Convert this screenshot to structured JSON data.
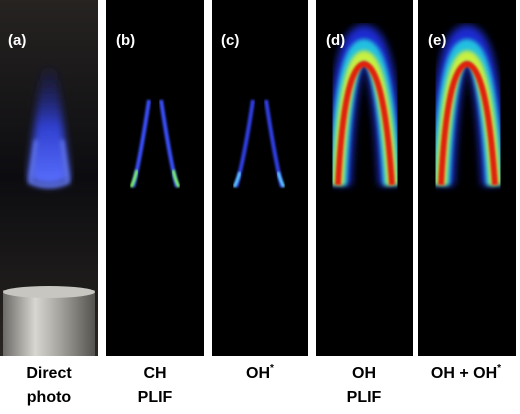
{
  "panels": [
    {
      "label": "(a)",
      "caption": [
        "Direct",
        "photo"
      ]
    },
    {
      "label": "(b)",
      "caption": [
        "CH",
        "PLIF"
      ]
    },
    {
      "label": "(c)",
      "caption": [
        "OH"
      ],
      "caption_sup": "*"
    },
    {
      "label": "(d)",
      "caption": [
        "OH",
        "PLIF"
      ]
    },
    {
      "label": "(e)",
      "caption": [
        "OH + OH"
      ],
      "caption_sup": "*"
    }
  ]
}
